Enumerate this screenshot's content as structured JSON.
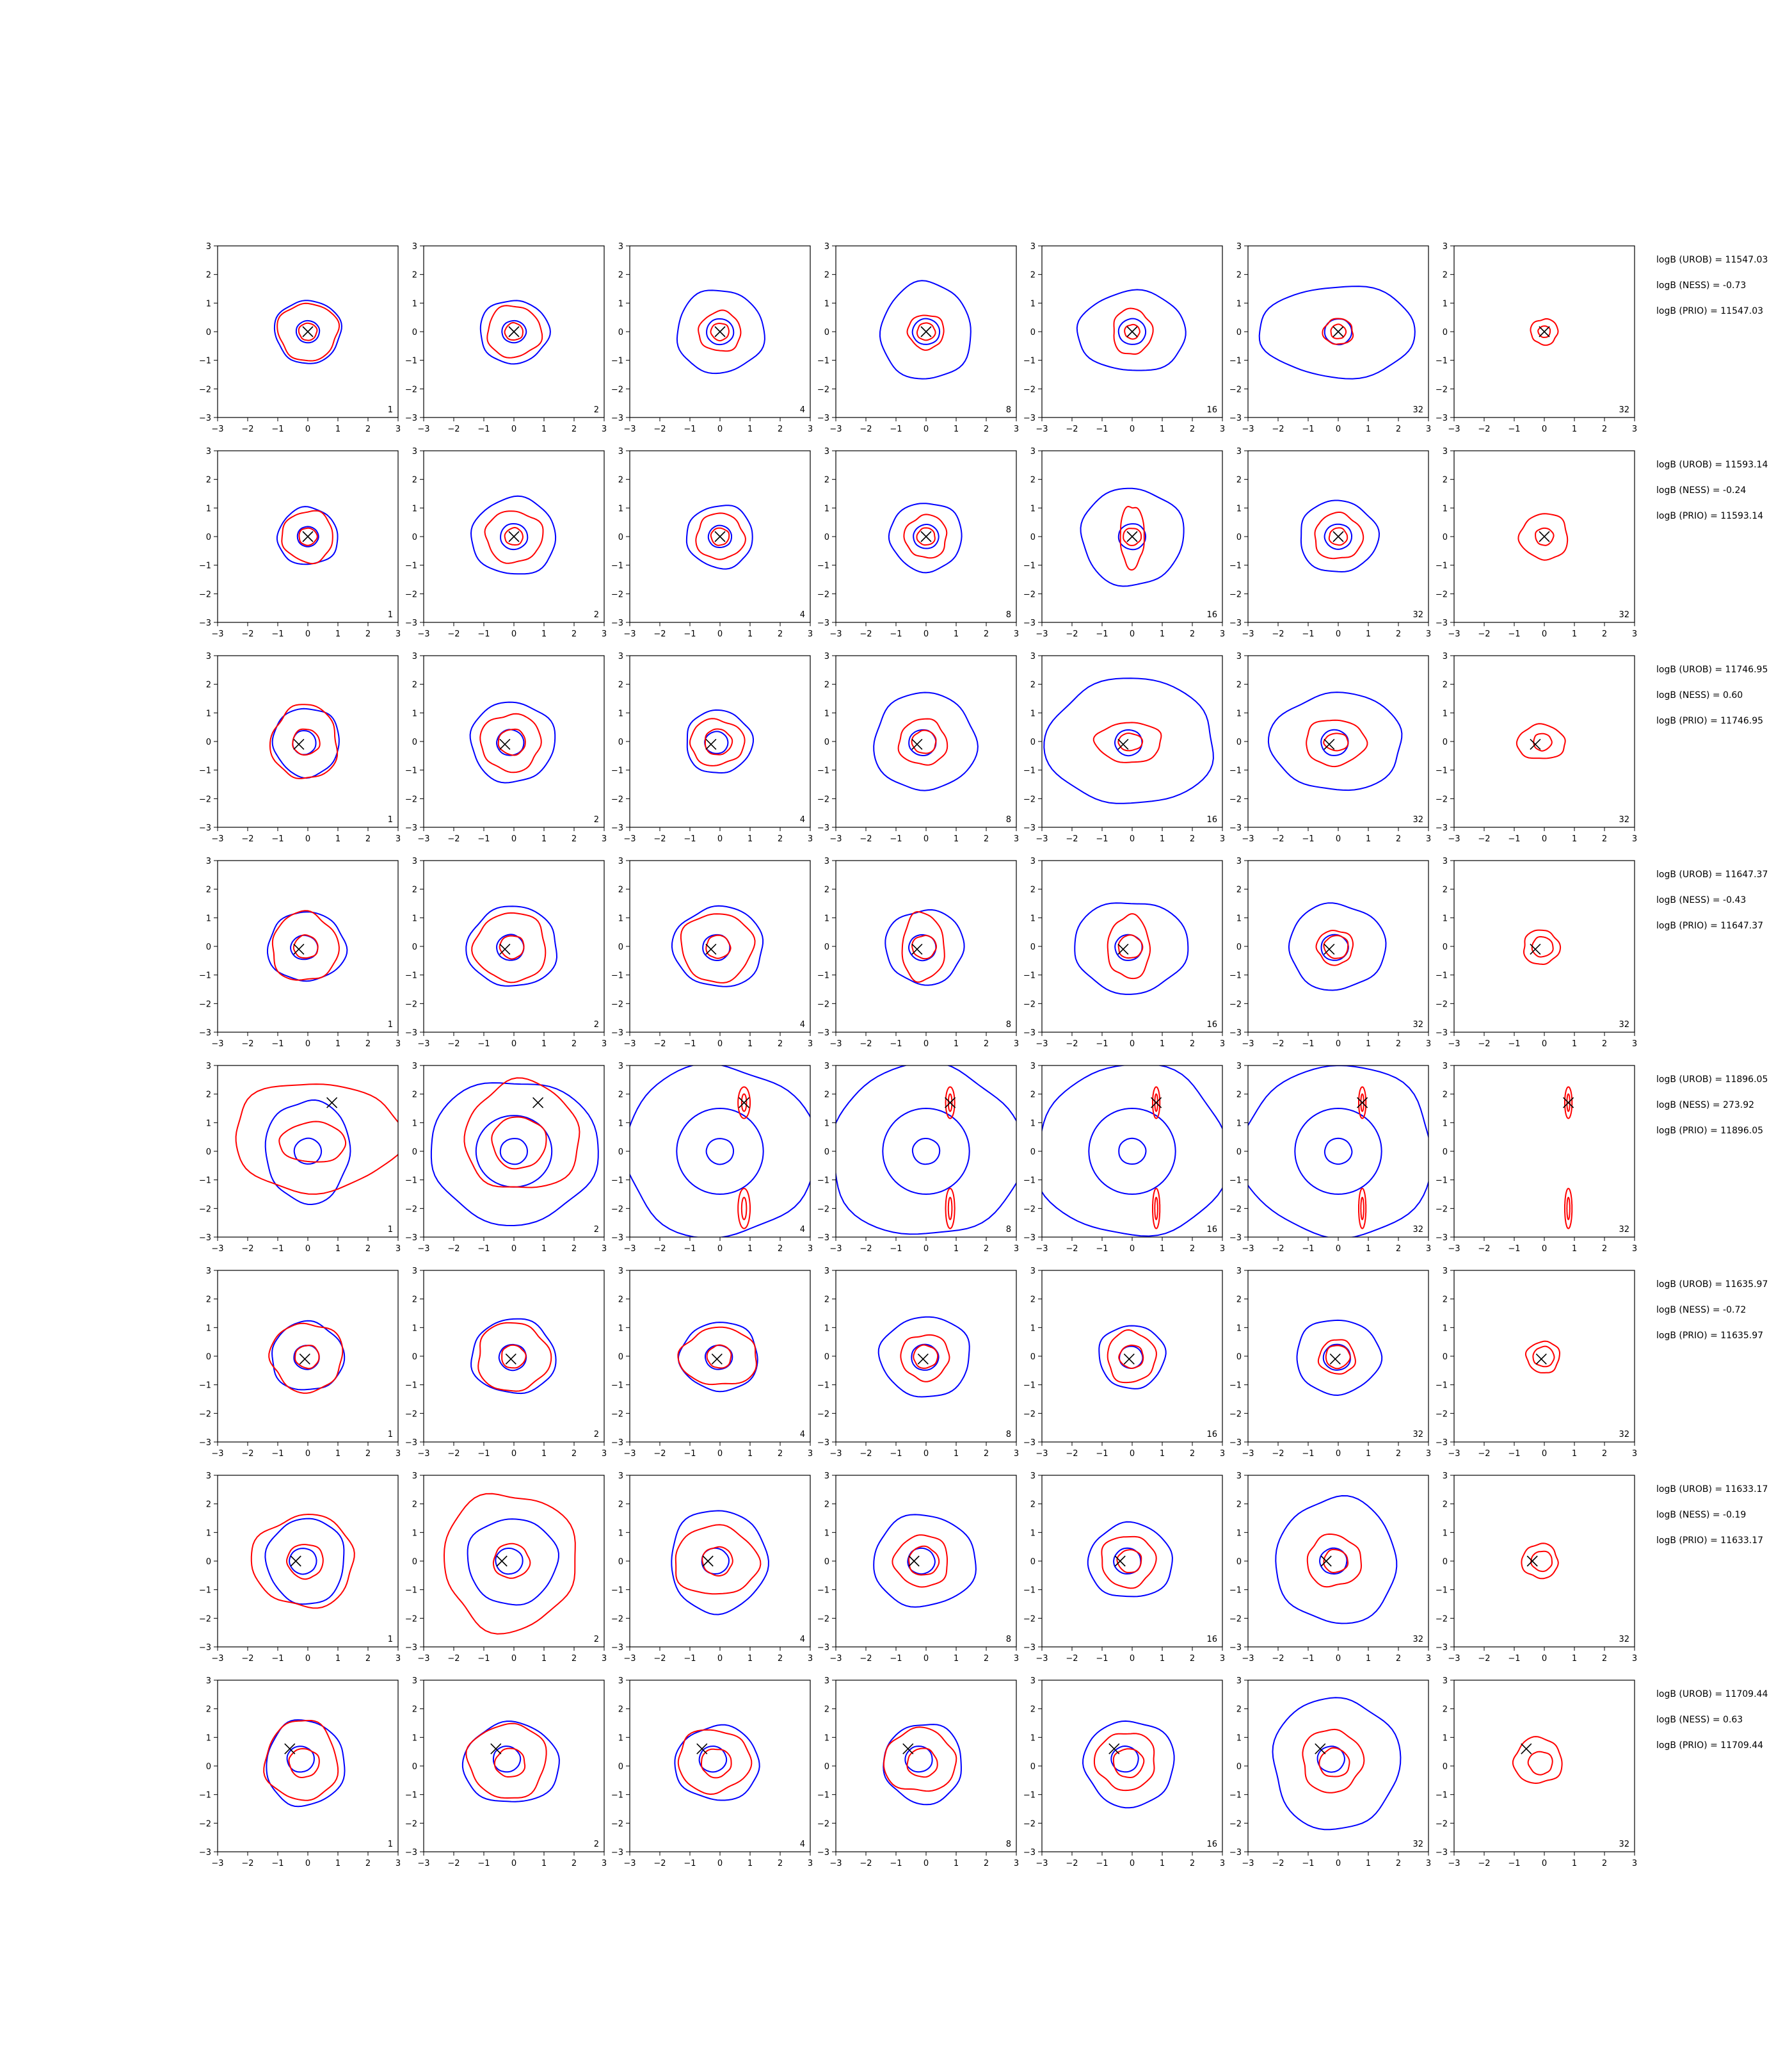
{
  "chart_data": {
    "type": "contour-grid",
    "title": "",
    "xlabel": "",
    "ylabel": "",
    "xlim": [
      -3,
      3
    ],
    "ylim": [
      -3,
      3
    ],
    "xticks": [
      -3,
      -2,
      -1,
      0,
      1,
      2,
      3
    ],
    "yticks": [
      -3,
      -2,
      -1,
      0,
      1,
      2,
      3
    ],
    "column_labels": [
      "1",
      "2",
      "4",
      "8",
      "16",
      "32",
      "32"
    ],
    "colors": {
      "blue_contours": "#0000ff",
      "red_contours": "#ff0000",
      "marker": "#000000"
    },
    "rows": [
      {
        "marker": [
          0.0,
          0.0
        ],
        "stats": [
          "logB (UROB) = 11547.03",
          "logB (NESS) = -0.73",
          "logB (PRIO) = 11547.03"
        ],
        "blue": [
          [
            1.1,
            1.1
          ],
          [
            1.15,
            1.1
          ],
          [
            1.45,
            1.45
          ],
          [
            1.5,
            1.7
          ],
          [
            1.8,
            1.4
          ],
          [
            2.6,
            1.6
          ],
          [
            null,
            null
          ]
        ],
        "red": [
          [
            0.3,
            0.3,
            1.0,
            1.0
          ],
          [
            0.3,
            0.3,
            0.9,
            0.9
          ],
          [
            0.3,
            0.3,
            0.7,
            0.7
          ],
          [
            0.3,
            0.3,
            0.6,
            0.6
          ],
          [
            0.25,
            0.25,
            0.65,
            0.8
          ],
          [
            0.25,
            0.25,
            0.5,
            0.45
          ],
          [
            0.2,
            0.2,
            0.45,
            0.45
          ]
        ]
      },
      {
        "marker": [
          0.0,
          0.0
        ],
        "stats": [
          "logB (UROB) = 11593.14",
          "logB (NESS) = -0.24",
          "logB (PRIO) = 11593.14"
        ],
        "blue": [
          [
            1.0,
            1.0
          ],
          [
            1.4,
            1.35
          ],
          [
            1.1,
            1.1
          ],
          [
            1.2,
            1.2
          ],
          [
            1.7,
            1.7
          ],
          [
            1.3,
            1.25
          ],
          [
            null,
            null
          ]
        ],
        "red": [
          [
            0.3,
            0.3,
            0.85,
            0.9
          ],
          [
            0.3,
            0.3,
            0.95,
            0.9
          ],
          [
            0.3,
            0.3,
            0.8,
            0.8
          ],
          [
            0.3,
            0.3,
            0.7,
            0.75
          ],
          [
            0.3,
            0.3,
            0.4,
            1.1
          ],
          [
            0.3,
            0.3,
            0.8,
            0.8
          ],
          [
            0.3,
            0.3,
            0.8,
            0.8
          ]
        ]
      },
      {
        "marker": [
          -0.3,
          -0.1
        ],
        "stats": [
          "logB (UROB) = 11746.95",
          "logB (NESS) = 0.60",
          "logB (PRIO) = 11746.95"
        ],
        "blue": [
          [
            1.1,
            1.2
          ],
          [
            1.4,
            1.4
          ],
          [
            1.1,
            1.1
          ],
          [
            1.7,
            1.7
          ],
          [
            2.8,
            2.2
          ],
          [
            2.2,
            1.7
          ],
          [
            null,
            null
          ]
        ],
        "red": [
          [
            0.45,
            0.45,
            1.1,
            1.3
          ],
          [
            0.45,
            0.45,
            1.0,
            1.0
          ],
          [
            0.45,
            0.45,
            0.9,
            0.8
          ],
          [
            0.4,
            0.4,
            0.8,
            0.8
          ],
          [
            0.4,
            0.3,
            1.1,
            0.7
          ],
          [
            0.4,
            0.3,
            1.0,
            0.8
          ],
          [
            0.3,
            0.3,
            0.8,
            0.6
          ]
        ]
      },
      {
        "marker": [
          -0.3,
          -0.1
        ],
        "stats": [
          "logB (UROB) = 11647.37",
          "logB (NESS) = -0.43",
          "logB (PRIO) = 11647.37"
        ],
        "blue": [
          [
            1.3,
            1.2
          ],
          [
            1.5,
            1.4
          ],
          [
            1.5,
            1.4
          ],
          [
            1.3,
            1.3
          ],
          [
            1.9,
            1.6
          ],
          [
            1.6,
            1.5
          ],
          [
            null,
            null
          ]
        ],
        "red": [
          [
            0.4,
            0.4,
            1.1,
            1.2
          ],
          [
            0.4,
            0.4,
            1.2,
            1.2
          ],
          [
            0.4,
            0.4,
            1.2,
            1.2
          ],
          [
            0.4,
            0.4,
            0.7,
            1.2
          ],
          [
            0.4,
            0.4,
            0.7,
            1.1
          ],
          [
            0.4,
            0.4,
            0.6,
            0.6
          ],
          [
            0.35,
            0.35,
            0.6,
            0.6
          ]
        ]
      },
      {
        "marker": [
          0.8,
          1.7
        ],
        "stats": [
          "logB (UROB) = 11896.05",
          "logB (NESS) = 273.92",
          "logB (PRIO) = 11896.05"
        ],
        "blue": [
          [
            1.4,
            1.8
          ],
          [
            2.8,
            2.5
          ],
          [
            3.2,
            3.0
          ],
          [
            3.2,
            3.0
          ],
          [
            3.2,
            3.0
          ],
          [
            3.2,
            3.0
          ],
          [
            null,
            null
          ]
        ],
        "red": [
          [
            1.1,
            0.7,
            2.8,
            1.9
          ],
          [
            0.9,
            0.9,
            1.9,
            1.9
          ],
          [
            0.2,
            0.55,
            0.2,
            0.55
          ],
          [
            0.15,
            0.55,
            0.15,
            0.55
          ],
          [
            0.12,
            0.55,
            0.12,
            0.55
          ],
          [
            0.12,
            0.55,
            0.12,
            0.55
          ],
          [
            0.12,
            0.55,
            0.12,
            0.55
          ]
        ]
      },
      {
        "marker": [
          -0.1,
          -0.1
        ],
        "stats": [
          "logB (UROB) = 11635.97",
          "logB (NESS) = -0.72",
          "logB (PRIO) = 11635.97"
        ],
        "blue": [
          [
            1.2,
            1.2
          ],
          [
            1.4,
            1.3
          ],
          [
            1.3,
            1.2
          ],
          [
            1.5,
            1.4
          ],
          [
            1.1,
            1.1
          ],
          [
            1.4,
            1.3
          ],
          [
            null,
            null
          ]
        ],
        "red": [
          [
            0.4,
            0.4,
            1.2,
            1.2
          ],
          [
            0.4,
            0.4,
            1.2,
            1.2
          ],
          [
            0.4,
            0.4,
            1.3,
            1.0
          ],
          [
            0.4,
            0.4,
            0.8,
            0.8
          ],
          [
            0.4,
            0.4,
            0.8,
            0.9
          ],
          [
            0.4,
            0.4,
            0.6,
            0.6
          ],
          [
            0.35,
            0.35,
            0.55,
            0.55
          ]
        ]
      },
      {
        "marker": [
          -0.4,
          0.0
        ],
        "stats": [
          "logB (UROB) = 11633.17",
          "logB (NESS) = -0.19",
          "logB (PRIO) = 11633.17"
        ],
        "blue": [
          [
            1.3,
            1.5
          ],
          [
            1.5,
            1.5
          ],
          [
            1.6,
            1.8
          ],
          [
            1.7,
            1.6
          ],
          [
            1.4,
            1.3
          ],
          [
            2.0,
            2.2
          ],
          [
            null,
            null
          ]
        ],
        "red": [
          [
            0.6,
            0.6,
            1.7,
            1.6
          ],
          [
            0.6,
            0.6,
            2.2,
            2.4
          ],
          [
            0.5,
            0.5,
            1.4,
            1.2
          ],
          [
            0.5,
            0.5,
            0.9,
            0.9
          ],
          [
            0.4,
            0.4,
            0.9,
            0.9
          ],
          [
            0.4,
            0.4,
            0.9,
            0.9
          ],
          [
            0.35,
            0.35,
            0.6,
            0.6
          ]
        ]
      },
      {
        "marker": [
          -0.6,
          0.6
        ],
        "stats": [
          "logB (UROB) = 11709.44",
          "logB (NESS) = 0.63",
          "logB (PRIO) = 11709.44"
        ],
        "blue": [
          [
            1.3,
            1.5
          ],
          [
            1.6,
            1.4
          ],
          [
            1.4,
            1.3
          ],
          [
            1.3,
            1.4
          ],
          [
            1.5,
            1.5
          ],
          [
            2.1,
            2.3
          ],
          [
            null,
            null
          ]
        ],
        "red": [
          [
            0.5,
            0.5,
            1.2,
            1.4
          ],
          [
            0.5,
            0.5,
            1.3,
            1.3
          ],
          [
            0.5,
            0.5,
            1.2,
            1.1
          ],
          [
            0.5,
            0.5,
            1.2,
            1.1
          ],
          [
            0.5,
            0.5,
            1.0,
            1.0
          ],
          [
            0.5,
            0.5,
            1.0,
            1.1
          ],
          [
            0.4,
            0.4,
            0.8,
            0.8
          ]
        ]
      }
    ]
  }
}
